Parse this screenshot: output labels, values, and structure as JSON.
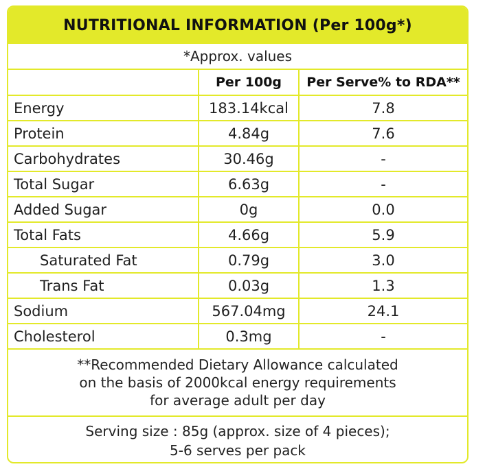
{
  "colors": {
    "accent": "#e3e92a",
    "text": "#1a1a1a"
  },
  "title": "NUTRITIONAL INFORMATION (Per 100g*)",
  "approx_note": "*Approx. values",
  "columns": {
    "per_100g": "Per 100g",
    "per_serve": "Per Serve% to RDA**"
  },
  "rows": [
    {
      "name": "Energy",
      "per_100g": "183.14kcal",
      "per_serve": "7.8"
    },
    {
      "name": "Protein",
      "per_100g": "4.84g",
      "per_serve": "7.6"
    },
    {
      "name": "Carbohydrates",
      "per_100g": "30.46g",
      "per_serve": "-"
    },
    {
      "name": "Total Sugar",
      "per_100g": "6.63g",
      "per_serve": "-"
    },
    {
      "name": "Added Sugar",
      "per_100g": "0g",
      "per_serve": "0.0"
    },
    {
      "name": "Total Fats",
      "per_100g": "4.66g",
      "per_serve": "5.9"
    },
    {
      "name": "Saturated Fat",
      "per_100g": "0.79g",
      "per_serve": "3.0"
    },
    {
      "name": "Trans Fat",
      "per_100g": "0.03g",
      "per_serve": "1.3"
    },
    {
      "name": "Sodium",
      "per_100g": "567.04mg",
      "per_serve": "24.1"
    },
    {
      "name": "Cholesterol",
      "per_100g": "0.3mg",
      "per_serve": "-"
    }
  ],
  "rda_note": [
    "**Recommended Dietary Allowance calculated",
    "on the basis of 2000kcal energy requirements",
    "for average adult per day"
  ],
  "serving_note": [
    "Serving size : 85g (approx. size of 4 pieces);",
    "5-6 serves per pack"
  ]
}
